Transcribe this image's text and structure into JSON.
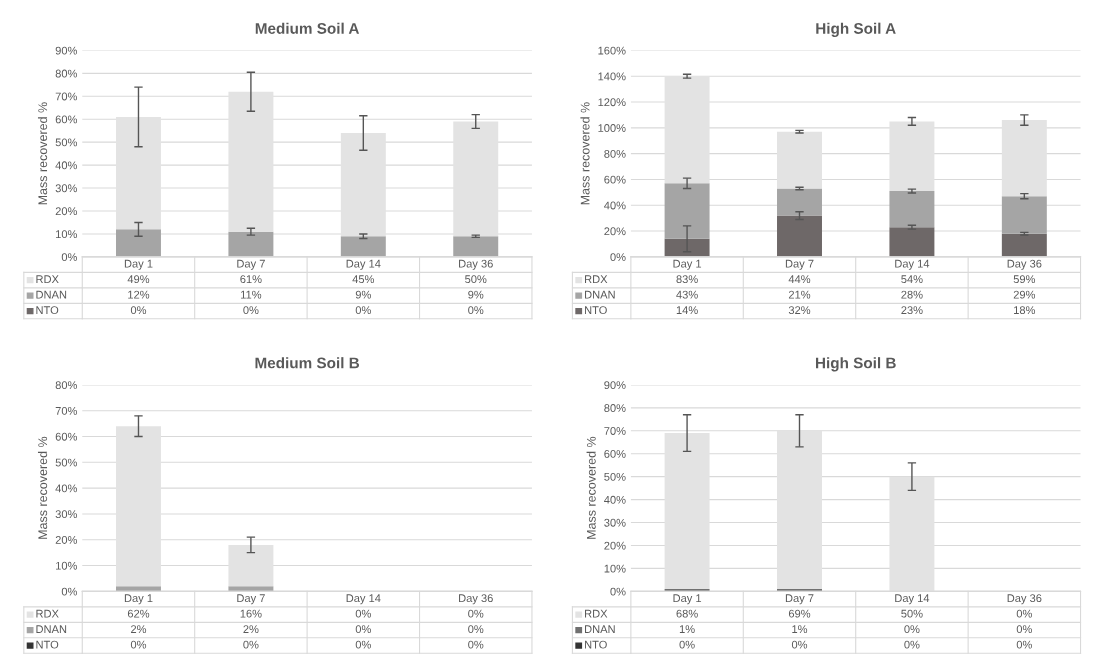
{
  "chart_data": [
    {
      "type": "bar",
      "title": "Medium Soil A",
      "ylabel": "Mass recovered %",
      "stacked": true,
      "grid": "y",
      "legend": "bottom",
      "categories": [
        "Day 1",
        "Day 7",
        "Day 14",
        "Day 36"
      ],
      "ylim": [
        0,
        90
      ],
      "yticks": [
        {
          "value": 0,
          "label": "0%"
        },
        {
          "value": 10,
          "label": "10%"
        },
        {
          "value": 20,
          "label": "20%"
        },
        {
          "value": 30,
          "label": "30%"
        },
        {
          "value": 40,
          "label": "40%"
        },
        {
          "value": 50,
          "label": "50%"
        },
        {
          "value": 60,
          "label": "60%"
        },
        {
          "value": 70,
          "label": "70%"
        },
        {
          "value": 80,
          "label": "80%"
        },
        {
          "value": 90,
          "label": "90%"
        }
      ],
      "series": [
        {
          "name": "NTO",
          "color": "#6e6868",
          "values": [
            0,
            0,
            0,
            0
          ],
          "value_labels": [
            "0%",
            "0%",
            "0%",
            "0%"
          ]
        },
        {
          "name": "DNAN",
          "color": "#a5a5a5",
          "values": [
            12,
            11,
            9,
            9
          ],
          "errors": [
            3,
            1.5,
            1,
            0.5
          ],
          "value_labels": [
            "12%",
            "11%",
            "9%",
            "9%"
          ]
        },
        {
          "name": "RDX",
          "color": "#e3e3e3",
          "values": [
            49,
            61,
            45,
            50
          ],
          "errors": [
            13,
            8.5,
            7.5,
            3
          ],
          "value_labels": [
            "49%",
            "61%",
            "45%",
            "50%"
          ]
        }
      ]
    },
    {
      "type": "bar",
      "title": "High Soil A",
      "ylabel": "Mass recovered %",
      "stacked": true,
      "grid": "y",
      "legend": "bottom",
      "categories": [
        "Day 1",
        "Day 7",
        "Day 14",
        "Day 36"
      ],
      "ylim": [
        0,
        160
      ],
      "yticks": [
        {
          "value": 0,
          "label": "0%"
        },
        {
          "value": 20,
          "label": "20%"
        },
        {
          "value": 40,
          "label": "40%"
        },
        {
          "value": 60,
          "label": "60%"
        },
        {
          "value": 80,
          "label": "80%"
        },
        {
          "value": 100,
          "label": "100%"
        },
        {
          "value": 120,
          "label": "120%"
        },
        {
          "value": 140,
          "label": "140%"
        },
        {
          "value": 160,
          "label": "160%"
        }
      ],
      "series": [
        {
          "name": "NTO",
          "color": "#6e6868",
          "values": [
            14,
            32,
            23,
            18
          ],
          "errors": [
            10,
            3,
            1.5,
            1
          ],
          "value_labels": [
            "14%",
            "32%",
            "23%",
            "18%"
          ]
        },
        {
          "name": "DNAN",
          "color": "#a5a5a5",
          "values": [
            43,
            21,
            28,
            29
          ],
          "errors": [
            4,
            1,
            1.5,
            2
          ],
          "value_labels": [
            "43%",
            "21%",
            "28%",
            "29%"
          ]
        },
        {
          "name": "RDX",
          "color": "#e3e3e3",
          "values": [
            83,
            44,
            54,
            59
          ],
          "errors": [
            1.5,
            1,
            3,
            4
          ],
          "value_labels": [
            "83%",
            "44%",
            "54%",
            "59%"
          ]
        }
      ]
    },
    {
      "type": "bar",
      "title": "Medium Soil B",
      "ylabel": "Mass recovered %",
      "stacked": true,
      "grid": "y",
      "legend": "bottom",
      "categories": [
        "Day 1",
        "Day 7",
        "Day 14",
        "Day 36"
      ],
      "ylim": [
        0,
        80
      ],
      "yticks": [
        {
          "value": 0,
          "label": "0%"
        },
        {
          "value": 10,
          "label": "10%"
        },
        {
          "value": 20,
          "label": "20%"
        },
        {
          "value": 30,
          "label": "30%"
        },
        {
          "value": 40,
          "label": "40%"
        },
        {
          "value": 50,
          "label": "50%"
        },
        {
          "value": 60,
          "label": "60%"
        },
        {
          "value": 70,
          "label": "70%"
        },
        {
          "value": 80,
          "label": "80%"
        }
      ],
      "series": [
        {
          "name": "NTO",
          "color": "#333333",
          "values": [
            0,
            0,
            0,
            0
          ],
          "value_labels": [
            "0%",
            "0%",
            "0%",
            "0%"
          ]
        },
        {
          "name": "DNAN",
          "color": "#a5a5a5",
          "values": [
            2,
            2,
            0,
            0
          ],
          "value_labels": [
            "2%",
            "2%",
            "0%",
            "0%"
          ]
        },
        {
          "name": "RDX",
          "color": "#e3e3e3",
          "values": [
            62,
            16,
            0,
            0
          ],
          "errors": [
            4,
            3,
            null,
            null
          ],
          "value_labels": [
            "62%",
            "16%",
            "0%",
            "0%"
          ]
        }
      ]
    },
    {
      "type": "bar",
      "title": "High Soil B",
      "ylabel": "Mass recovered %",
      "stacked": true,
      "grid": "y",
      "legend": "bottom",
      "categories": [
        "Day 1",
        "Day 7",
        "Day 14",
        "Day 36"
      ],
      "ylim": [
        0,
        90
      ],
      "yticks": [
        {
          "value": 0,
          "label": "0%"
        },
        {
          "value": 10,
          "label": "10%"
        },
        {
          "value": 20,
          "label": "20%"
        },
        {
          "value": 30,
          "label": "30%"
        },
        {
          "value": 40,
          "label": "40%"
        },
        {
          "value": 50,
          "label": "50%"
        },
        {
          "value": 60,
          "label": "60%"
        },
        {
          "value": 70,
          "label": "70%"
        },
        {
          "value": 80,
          "label": "80%"
        },
        {
          "value": 90,
          "label": "90%"
        }
      ],
      "series": [
        {
          "name": "NTO",
          "color": "#333333",
          "values": [
            0,
            0,
            0,
            0
          ],
          "value_labels": [
            "0%",
            "0%",
            "0%",
            "0%"
          ]
        },
        {
          "name": "DNAN",
          "color": "#707070",
          "values": [
            1,
            1,
            0,
            0
          ],
          "value_labels": [
            "1%",
            "1%",
            "0%",
            "0%"
          ]
        },
        {
          "name": "RDX",
          "color": "#e3e3e3",
          "values": [
            68,
            69,
            50,
            0
          ],
          "errors": [
            8,
            7,
            6,
            null
          ],
          "value_labels": [
            "68%",
            "69%",
            "50%",
            "0%"
          ]
        }
      ]
    }
  ]
}
